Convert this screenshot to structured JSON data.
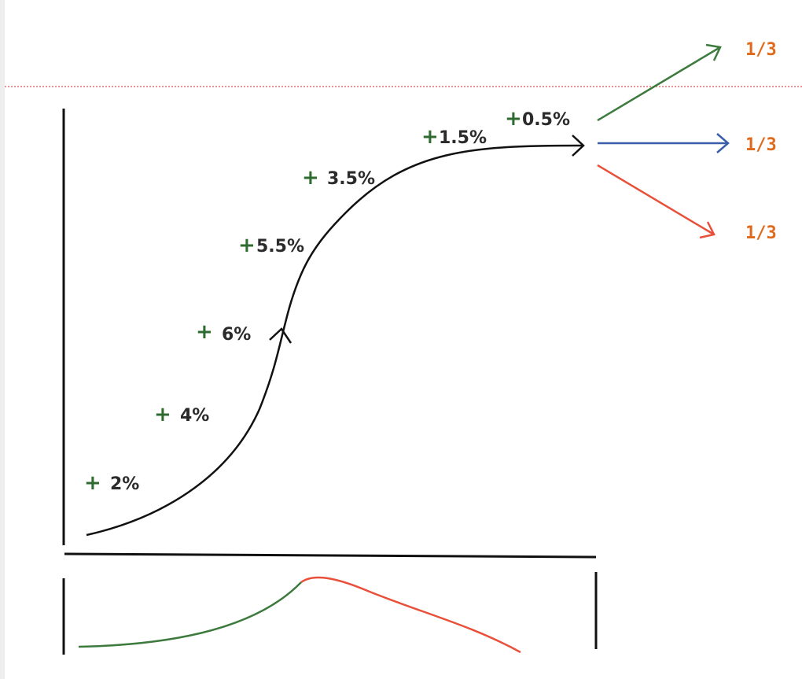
{
  "colors": {
    "background": "#ffffff",
    "axis": "#111111",
    "main_curve": "#111111",
    "plus_sign": "#2e6b2e",
    "growth_text": "#2b2b2b",
    "fraction_text": "#e06a1c",
    "arrow_up": "#3d7a3d",
    "arrow_flat": "#3a5ea8",
    "arrow_down": "#e8503a",
    "dotted_line": "#e07070",
    "small_curve_rise": "#3d7a3d",
    "small_curve_fall": "#e8503a"
  },
  "growth_labels": [
    {
      "sign": "+",
      "value": "2%"
    },
    {
      "sign": "+",
      "value": "4%"
    },
    {
      "sign": "+",
      "value": "6%"
    },
    {
      "sign": "+",
      "value": "5.5%"
    },
    {
      "sign": "+",
      "value": "3.5%"
    },
    {
      "sign": "+",
      "value": "1.5%"
    },
    {
      "sign": "+",
      "value": "0.5%"
    }
  ],
  "outcomes": [
    {
      "label": "1/3",
      "icon": "arrow-up-right-icon"
    },
    {
      "label": "1/3",
      "icon": "arrow-right-icon"
    },
    {
      "label": "1/3",
      "icon": "arrow-down-right-icon"
    }
  ]
}
